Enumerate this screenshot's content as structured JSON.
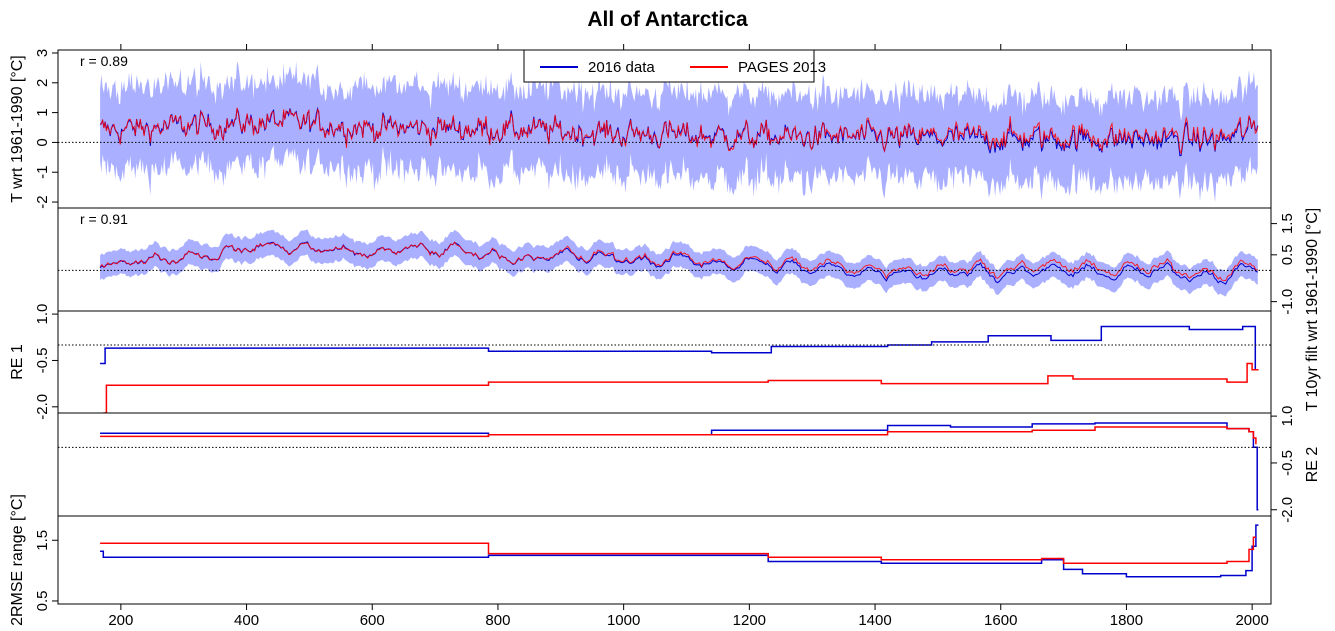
{
  "title": "All of Antarctica",
  "x_ticks": [
    200,
    400,
    600,
    800,
    1000,
    1200,
    1400,
    1600,
    1800,
    2000
  ],
  "xlim": [
    100,
    2030
  ],
  "legend": {
    "placement": "top-center",
    "items": [
      {
        "name": "2016 data",
        "color": "#0000cc"
      },
      {
        "name": "PAGES 2013",
        "color": "#ff0000"
      }
    ]
  },
  "colors": {
    "series_2016": "#0000cc",
    "series_pages": "#ff0000",
    "uncertainty_band": "#aab0ff"
  },
  "chart_data": [
    {
      "type": "line",
      "panel": "temperature",
      "ylabel": "T wrt 1961-1990 [°C]",
      "ylim": [
        -2.2,
        3.1
      ],
      "yticks": [
        -2,
        -1,
        0,
        1,
        2,
        3
      ],
      "axis_side": "left",
      "annotation": "r = 0.89",
      "reference_line": 0,
      "x_range": [
        167,
        2010
      ],
      "band_halfwidth": 1.1,
      "series": [
        {
          "name": "2016 data",
          "trend": [
            [
              167,
              0.4
            ],
            [
              300,
              0.55
            ],
            [
              450,
              0.7
            ],
            [
              600,
              0.5
            ],
            [
              800,
              0.45
            ],
            [
              1000,
              0.3
            ],
            [
              1200,
              0.2
            ],
            [
              1400,
              0.15
            ],
            [
              1600,
              0.1
            ],
            [
              1800,
              0.1
            ],
            [
              1950,
              0.05
            ],
            [
              2010,
              0.5
            ]
          ]
        },
        {
          "name": "PAGES 2013",
          "trend": [
            [
              167,
              0.4
            ],
            [
              300,
              0.55
            ],
            [
              450,
              0.7
            ],
            [
              600,
              0.5
            ],
            [
              800,
              0.45
            ],
            [
              1000,
              0.3
            ],
            [
              1200,
              0.2
            ],
            [
              1400,
              0.2
            ],
            [
              1600,
              0.2
            ],
            [
              1800,
              0.2
            ],
            [
              1950,
              0.15
            ],
            [
              2010,
              0.5
            ]
          ]
        }
      ]
    },
    {
      "type": "line",
      "panel": "filtered",
      "ylabel": "T 10yr filt wrt 1961-1990 [°C]",
      "ylim": [
        -1.3,
        2.0
      ],
      "yticks": [
        -1.0,
        0.5,
        1.5
      ],
      "axis_side": "right",
      "annotation": "r = 0.91",
      "reference_line": 0,
      "x_range": [
        167,
        2010
      ],
      "band_halfwidth": 0.35,
      "series": [
        {
          "name": "2016 data",
          "trend": [
            [
              167,
              0.2
            ],
            [
              300,
              0.5
            ],
            [
              450,
              0.8
            ],
            [
              600,
              0.55
            ],
            [
              700,
              0.7
            ],
            [
              800,
              0.5
            ],
            [
              1000,
              0.35
            ],
            [
              1200,
              0.25
            ],
            [
              1300,
              0.0
            ],
            [
              1500,
              0.0
            ],
            [
              1700,
              -0.05
            ],
            [
              1900,
              -0.1
            ],
            [
              1980,
              -0.05
            ],
            [
              2010,
              0.2
            ]
          ]
        },
        {
          "name": "PAGES 2013",
          "trend": [
            [
              167,
              0.2
            ],
            [
              300,
              0.5
            ],
            [
              450,
              0.8
            ],
            [
              600,
              0.55
            ],
            [
              700,
              0.7
            ],
            [
              800,
              0.5
            ],
            [
              1000,
              0.4
            ],
            [
              1200,
              0.3
            ],
            [
              1300,
              0.1
            ],
            [
              1500,
              0.1
            ],
            [
              1700,
              0.1
            ],
            [
              1900,
              0.0
            ],
            [
              1980,
              0.05
            ],
            [
              2010,
              0.25
            ]
          ]
        }
      ]
    },
    {
      "type": "line",
      "panel": "RE 1",
      "ylabel": "RE 1",
      "ylim": [
        -2.2,
        1.1
      ],
      "yticks": [
        -2.0,
        -0.5,
        1.0
      ],
      "axis_side": "left",
      "reference_line": 0,
      "series": [
        {
          "name": "2016 data",
          "steps": [
            [
              167,
              -0.6
            ],
            [
              175,
              -0.1
            ],
            [
              785,
              -0.2
            ],
            [
              1140,
              -0.25
            ],
            [
              1235,
              -0.05
            ],
            [
              1420,
              0.0
            ],
            [
              1490,
              0.1
            ],
            [
              1580,
              0.3
            ],
            [
              1680,
              0.15
            ],
            [
              1760,
              0.6
            ],
            [
              1900,
              0.5
            ],
            [
              1985,
              0.6
            ],
            [
              2005,
              -0.8
            ],
            [
              2010,
              -0.8
            ]
          ]
        },
        {
          "name": "PAGES 2013",
          "steps": [
            [
              172,
              -2.2
            ],
            [
              177,
              -1.3
            ],
            [
              785,
              -1.2
            ],
            [
              1230,
              -1.15
            ],
            [
              1410,
              -1.25
            ],
            [
              1675,
              -1.0
            ],
            [
              1715,
              -1.1
            ],
            [
              1960,
              -1.2
            ],
            [
              1992,
              -0.6
            ],
            [
              2000,
              -0.8
            ],
            [
              2010,
              -0.8
            ]
          ]
        }
      ]
    },
    {
      "type": "line",
      "panel": "RE 2",
      "ylabel": "RE 2",
      "ylim": [
        -2.2,
        1.1
      ],
      "yticks": [
        -2.0,
        -0.5,
        1.0
      ],
      "axis_side": "right",
      "reference_line": 0,
      "series": [
        {
          "name": "2016 data",
          "steps": [
            [
              167,
              0.45
            ],
            [
              785,
              0.4
            ],
            [
              1140,
              0.55
            ],
            [
              1420,
              0.7
            ],
            [
              1520,
              0.65
            ],
            [
              1650,
              0.75
            ],
            [
              1750,
              0.78
            ],
            [
              1960,
              0.6
            ],
            [
              1995,
              0.5
            ],
            [
              2002,
              0.0
            ],
            [
              2008,
              -2.0
            ],
            [
              2010,
              -2.0
            ]
          ]
        },
        {
          "name": "PAGES 2013",
          "steps": [
            [
              167,
              0.35
            ],
            [
              785,
              0.4
            ],
            [
              1100,
              0.4
            ],
            [
              1420,
              0.5
            ],
            [
              1650,
              0.55
            ],
            [
              1750,
              0.65
            ],
            [
              1960,
              0.6
            ],
            [
              1995,
              0.5
            ],
            [
              2002,
              0.3
            ],
            [
              2006,
              0.1
            ]
          ]
        }
      ]
    },
    {
      "type": "line",
      "panel": "2RMSE range",
      "ylabel": "2RMSE range [°C]",
      "ylim": [
        0.45,
        1.9
      ],
      "yticks": [
        0.5,
        1.5
      ],
      "axis_side": "left",
      "series": [
        {
          "name": "2016 data",
          "steps": [
            [
              167,
              1.32
            ],
            [
              172,
              1.22
            ],
            [
              785,
              1.25
            ],
            [
              1230,
              1.15
            ],
            [
              1410,
              1.12
            ],
            [
              1665,
              1.18
            ],
            [
              1700,
              1.02
            ],
            [
              1730,
              0.95
            ],
            [
              1800,
              0.9
            ],
            [
              1950,
              0.92
            ],
            [
              1990,
              1.0
            ],
            [
              2000,
              1.4
            ],
            [
              2006,
              1.75
            ],
            [
              2010,
              1.75
            ]
          ]
        },
        {
          "name": "PAGES 2013",
          "steps": [
            [
              167,
              1.45
            ],
            [
              785,
              1.28
            ],
            [
              1230,
              1.22
            ],
            [
              1410,
              1.18
            ],
            [
              1665,
              1.2
            ],
            [
              1700,
              1.12
            ],
            [
              1960,
              1.15
            ],
            [
              1995,
              1.35
            ],
            [
              2002,
              1.55
            ],
            [
              2006,
              1.55
            ]
          ]
        }
      ]
    }
  ]
}
